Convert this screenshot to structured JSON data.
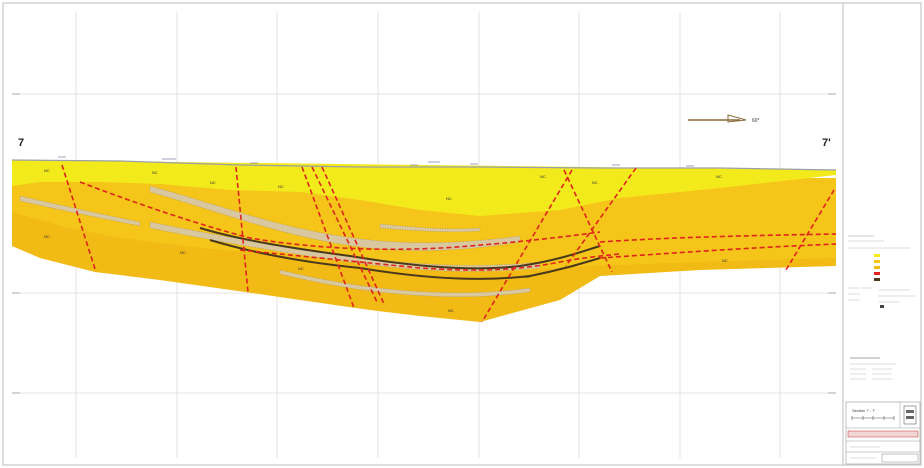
{
  "section": {
    "left_end_label": "7",
    "right_end_label": "7'",
    "north_arrow_label": "60°"
  },
  "unit_labels": [
    {
      "id": "u1",
      "text": "NC"
    },
    {
      "id": "u2",
      "text": "NC"
    },
    {
      "id": "u3",
      "text": "NC"
    },
    {
      "id": "u4",
      "text": "NC"
    },
    {
      "id": "u5",
      "text": "NC"
    },
    {
      "id": "u6",
      "text": "NC"
    },
    {
      "id": "u7",
      "text": "NC"
    },
    {
      "id": "u8",
      "text": "NC"
    },
    {
      "id": "u9",
      "text": "NC"
    },
    {
      "id": "u10",
      "text": "NC"
    },
    {
      "id": "u11",
      "text": "NC"
    },
    {
      "id": "u12",
      "text": "NC"
    },
    {
      "id": "u13",
      "text": "NC"
    },
    {
      "id": "u14",
      "text": "NC"
    }
  ],
  "colors": {
    "upper_unit": "#f3ea1c",
    "middle_unit": "#f5c51a",
    "lower_unit": "#f2ba14",
    "fault": "#e0231b",
    "coal_seam": "#4a3a1a",
    "sandstone_band": "#d9c7a0",
    "grid": "#dcdcdc"
  },
  "legend": {
    "swatch_colors": [
      "#f3ea1c",
      "#f5c51a",
      "#f2ba14",
      "#e0231b",
      "#4a3a1a"
    ]
  },
  "title_block": {
    "stamp_text": "Section 7 - 7'"
  }
}
